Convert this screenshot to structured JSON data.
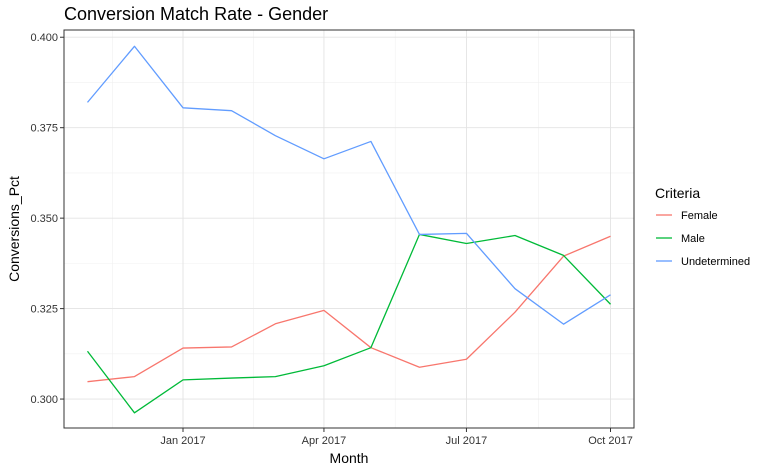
{
  "chart_data": {
    "type": "line",
    "title": "Conversion Match Rate - Gender",
    "xlabel": "Month",
    "ylabel": "Conversions_Pct",
    "x": [
      "2016-11-01",
      "2016-12-01",
      "2017-01-01",
      "2017-02-01",
      "2017-03-01",
      "2017-04-01",
      "2017-05-01",
      "2017-06-01",
      "2017-07-01",
      "2017-08-01",
      "2017-09-01",
      "2017-10-01"
    ],
    "x_ticks": [
      {
        "date": "2017-01-01",
        "label": "Jan 2017"
      },
      {
        "date": "2017-04-01",
        "label": "Apr 2017"
      },
      {
        "date": "2017-07-01",
        "label": "Jul 2017"
      },
      {
        "date": "2017-10-01",
        "label": "Oct 2017"
      }
    ],
    "xlim": [
      "2016-10-17",
      "2017-10-16"
    ],
    "ylim": [
      0.292,
      0.402
    ],
    "y_ticks": [
      0.3,
      0.325,
      0.35,
      0.375,
      0.4
    ],
    "y_tick_labels": [
      "0.300",
      "0.325",
      "0.350",
      "0.375",
      "0.400"
    ],
    "grid": true,
    "legend": {
      "title": "Criteria",
      "position": "right"
    },
    "series": [
      {
        "name": "Female",
        "color": "#F8766D",
        "values": [
          0.3048,
          0.3062,
          0.3141,
          0.3144,
          0.3208,
          0.3245,
          0.3142,
          0.3088,
          0.311,
          0.324,
          0.3395,
          0.345
        ]
      },
      {
        "name": "Male",
        "color": "#00BA38",
        "values": [
          0.3132,
          0.2962,
          0.3053,
          0.3058,
          0.3062,
          0.3092,
          0.3142,
          0.3455,
          0.343,
          0.3452,
          0.3397,
          0.3262
        ]
      },
      {
        "name": "Undetermined",
        "color": "#619CFF",
        "values": [
          0.382,
          0.3975,
          0.3805,
          0.3797,
          0.3728,
          0.3664,
          0.3712,
          0.3455,
          0.3458,
          0.3305,
          0.3207,
          0.3288
        ]
      }
    ]
  }
}
